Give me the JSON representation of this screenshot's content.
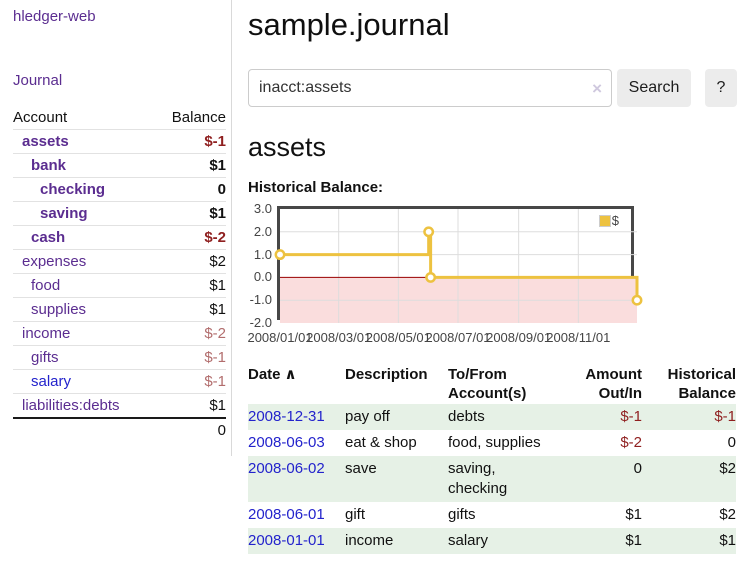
{
  "colors": {
    "link_purple": "#5b2d90",
    "link_blue": "#2323cc",
    "negative_strong": "#8f1f1f",
    "negative_soft": "#b26d6d",
    "row_green": "#e6f1e6",
    "series_gold": "#edc240",
    "zero_line": "#990000",
    "negative_region": "#fadddd",
    "gridline": "#dddddd",
    "button_gray": "#ececec"
  },
  "sidebar": {
    "brand": "hledger-web",
    "nav": {
      "journal": "Journal"
    },
    "table": {
      "account_header": "Account",
      "balance_header": "Balance"
    },
    "accounts": [
      {
        "name": "assets",
        "level": 0,
        "balance": "$-1",
        "bold": true,
        "negative": "strong"
      },
      {
        "name": "bank",
        "level": 1,
        "balance": "$1",
        "bold": true
      },
      {
        "name": "checking",
        "level": 2,
        "balance": "0",
        "bold": true
      },
      {
        "name": "saving",
        "level": 2,
        "balance": "$1",
        "bold": true
      },
      {
        "name": "cash",
        "level": 1,
        "balance": "$-2",
        "bold": true,
        "negative": "strong"
      },
      {
        "name": "expenses",
        "level": 0,
        "balance": "$2"
      },
      {
        "name": "food",
        "level": 1,
        "balance": "$1"
      },
      {
        "name": "supplies",
        "level": 1,
        "balance": "$1"
      },
      {
        "name": "income",
        "level": 0,
        "balance": "$-2",
        "negative": "soft"
      },
      {
        "name": "gifts",
        "level": 1,
        "balance": "$-1",
        "negative": "soft"
      },
      {
        "name": "salary",
        "level": 1,
        "balance": "$-1",
        "negative": "soft",
        "unvisited": true
      },
      {
        "name": "liabilities:debts",
        "level": 0,
        "balance": "$1"
      }
    ],
    "total": "0"
  },
  "main": {
    "title": "sample.journal",
    "search": {
      "value": "inacct:assets",
      "clear_icon": "×",
      "search_button": "Search",
      "help_button": "?"
    },
    "account_heading": "assets",
    "chart_heading": "Historical Balance:"
  },
  "chart_data": {
    "type": "line",
    "step": true,
    "title": "Historical Balance",
    "series": [
      {
        "name": "$",
        "color": "#edc240",
        "points": [
          [
            "2008/01/01",
            1
          ],
          [
            "2008/06/01",
            2
          ],
          [
            "2008/06/03",
            0
          ],
          [
            "2008/12/31",
            -1
          ]
        ]
      }
    ],
    "x_start": "2008/01/01",
    "x_end": "2008/12/31",
    "x_ticks": [
      "2008/01/01",
      "2008/03/01",
      "2008/05/01",
      "2008/07/01",
      "2008/09/01",
      "2008/11/01"
    ],
    "y_ticks": [
      "3.0",
      "2.0",
      "1.0",
      "0.0",
      "-1.0",
      "-2.0"
    ],
    "ylim": [
      -2,
      3
    ],
    "grid": true,
    "negative_region": true,
    "legend": {
      "label": "$",
      "position": "top-right"
    }
  },
  "register": {
    "columns": {
      "date": "Date",
      "sort_indicator": "∧",
      "description": "Description",
      "accounts": "To/From Account(s)",
      "amount": "Amount Out/In",
      "balance": "Historical Balance"
    },
    "rows": [
      {
        "date": "2008-12-31",
        "description": "pay off",
        "accounts": "debts",
        "amount": "$-1",
        "balance": "$-1",
        "amount_negative": true,
        "balance_negative": true
      },
      {
        "date": "2008-06-03",
        "description": "eat & shop",
        "accounts": "food, supplies",
        "amount": "$-2",
        "balance": "0",
        "amount_negative": true,
        "balance_negative": false
      },
      {
        "date": "2008-06-02",
        "description": "save",
        "accounts": "saving, checking",
        "amount": "0",
        "balance": "$2",
        "amount_negative": false,
        "balance_negative": false
      },
      {
        "date": "2008-06-01",
        "description": "gift",
        "accounts": "gifts",
        "amount": "$1",
        "balance": "$2",
        "amount_negative": false,
        "balance_negative": false
      },
      {
        "date": "2008-01-01",
        "description": "income",
        "accounts": "salary",
        "amount": "$1",
        "balance": "$1",
        "amount_negative": false,
        "balance_negative": false
      }
    ]
  }
}
